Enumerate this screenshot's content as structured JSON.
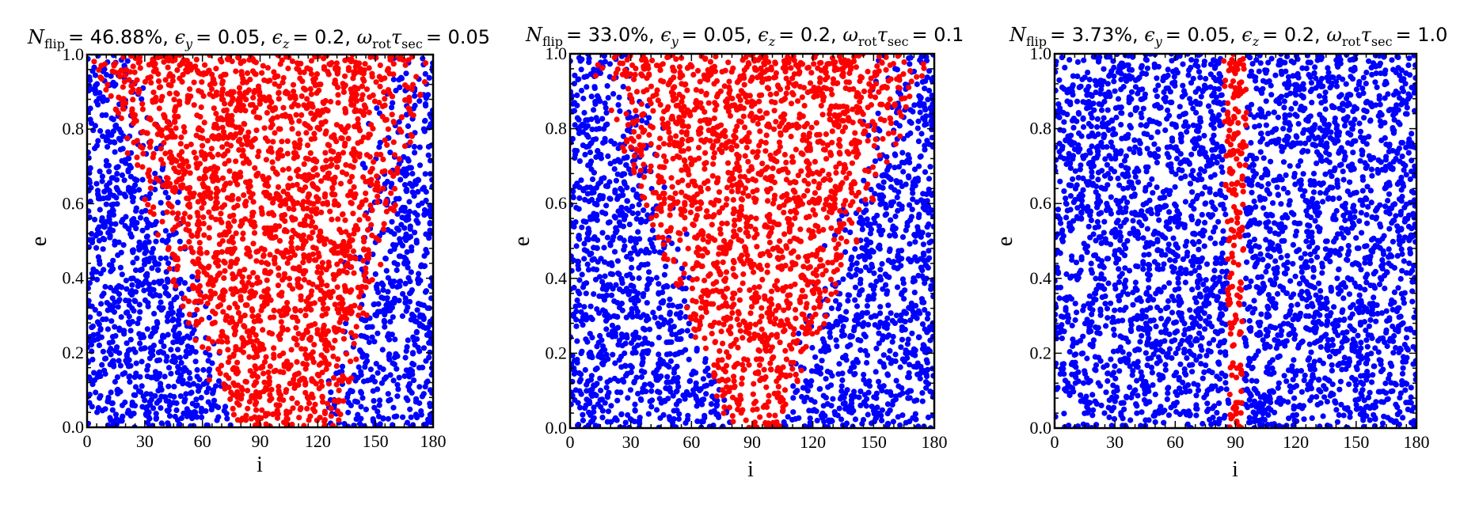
{
  "figure": {
    "panels": [
      {
        "title_parts": {
          "n_var": "N",
          "n_sub": "flip",
          "n_val": "= 46.88%,",
          "ey_sym": "ϵ",
          "ey_sub": "y",
          "ey_val": "= 0.05,",
          "ez_sym": "ϵ",
          "ez_sub": "z",
          "ez_val": "= 0.2,",
          "w_sym": "ω",
          "w_sub": "rot",
          "t_sym": "τ",
          "t_sub": "sec",
          "w_val": "= 0.05"
        }
      },
      {
        "title_parts": {
          "n_var": "N",
          "n_sub": "flip",
          "n_val": "= 33.0%,",
          "ey_sym": "ϵ",
          "ey_sub": "y",
          "ey_val": "= 0.05,",
          "ez_sym": "ϵ",
          "ez_sub": "z",
          "ez_val": "= 0.2,",
          "w_sym": "ω",
          "w_sub": "rot",
          "t_sym": "τ",
          "t_sub": "sec",
          "w_val": "= 0.1"
        }
      },
      {
        "title_parts": {
          "n_var": "N",
          "n_sub": "flip",
          "n_val": "= 3.73%,",
          "ey_sym": "ϵ",
          "ey_sub": "y",
          "ey_val": "= 0.05,",
          "ez_sym": "ϵ",
          "ez_sub": "z",
          "ez_val": "= 0.2,",
          "w_sym": "ω",
          "w_sub": "rot",
          "t_sym": "τ",
          "t_sub": "sec",
          "w_val": "= 1.0"
        }
      }
    ]
  },
  "chart_data": [
    {
      "type": "scatter",
      "title": "N_flip = 46.88%, ϵ_y = 0.05, ϵ_z = 0.2, ω_rot τ_sec = 0.05",
      "xlabel": "i",
      "ylabel": "e",
      "xlim": [
        0,
        180
      ],
      "ylim": [
        0.0,
        1.0
      ],
      "xticks": [
        0,
        30,
        60,
        90,
        120,
        150,
        180
      ],
      "yticks": [
        0.0,
        0.2,
        0.4,
        0.6,
        0.8,
        1.0
      ],
      "xtick_labels": [
        "0",
        "30",
        "60",
        "90",
        "120",
        "150",
        "180"
      ],
      "ytick_labels": [
        "0.0",
        "0.2",
        "0.4",
        "0.6",
        "0.8",
        "1.0"
      ],
      "grid": false,
      "colors": {
        "non_flip": "#0000ff",
        "flip": "#ff0000"
      },
      "series": [
        {
          "color": "#0000ff",
          "n_points": 3500,
          "x_range": [
            0,
            180
          ],
          "y_range": [
            0.0,
            1.0
          ]
        },
        {
          "color": "#ff0000",
          "flip_fraction": 0.4688,
          "region": {
            "e_top": 1.0,
            "i_low_at_top": 2,
            "i_high_at_top": 180,
            "e_bottom": 0.0,
            "i_low_at_bottom": 72,
            "i_high_at_bottom": 132
          }
        }
      ]
    },
    {
      "type": "scatter",
      "title": "N_flip = 33.0%, ϵ_y = 0.05, ϵ_z = 0.2, ω_rot τ_sec = 0.1",
      "xlabel": "i",
      "ylabel": "e",
      "xlim": [
        0,
        180
      ],
      "ylim": [
        0.0,
        1.0
      ],
      "xticks": [
        0,
        30,
        60,
        90,
        120,
        150,
        180
      ],
      "yticks": [
        0.0,
        0.2,
        0.4,
        0.6,
        0.8,
        1.0
      ],
      "xtick_labels": [
        "0",
        "30",
        "60",
        "90",
        "120",
        "150",
        "180"
      ],
      "ytick_labels": [
        "0.0",
        "0.2",
        "0.4",
        "0.6",
        "0.8",
        "1.0"
      ],
      "grid": false,
      "colors": {
        "non_flip": "#0000ff",
        "flip": "#ff0000"
      },
      "series": [
        {
          "color": "#0000ff",
          "n_points": 3500,
          "x_range": [
            0,
            180
          ],
          "y_range": [
            0.0,
            1.0
          ]
        },
        {
          "color": "#ff0000",
          "flip_fraction": 0.33,
          "region": {
            "e_top": 1.0,
            "i_low_at_top": 8,
            "i_high_at_top": 180,
            "e_bottom": 0.0,
            "i_low_at_bottom": 78,
            "i_high_at_bottom": 105
          }
        }
      ]
    },
    {
      "type": "scatter",
      "title": "N_flip = 3.73%, ϵ_y = 0.05, ϵ_z = 0.2, ω_rot τ_sec = 1.0",
      "xlabel": "i",
      "ylabel": "e",
      "xlim": [
        0,
        180
      ],
      "ylim": [
        0.0,
        1.0
      ],
      "xticks": [
        0,
        30,
        60,
        90,
        120,
        150,
        180
      ],
      "yticks": [
        0.0,
        0.2,
        0.4,
        0.6,
        0.8,
        1.0
      ],
      "xtick_labels": [
        "0",
        "30",
        "60",
        "90",
        "120",
        "150",
        "180"
      ],
      "ytick_labels": [
        "0.0",
        "0.2",
        "0.4",
        "0.6",
        "0.8",
        "1.0"
      ],
      "grid": false,
      "colors": {
        "non_flip": "#0000ff",
        "flip": "#ff0000"
      },
      "series": [
        {
          "color": "#0000ff",
          "n_points": 3500,
          "x_range": [
            0,
            180
          ],
          "y_range": [
            0.0,
            1.0
          ]
        },
        {
          "color": "#ff0000",
          "flip_fraction": 0.0373,
          "region": {
            "e_top": 1.0,
            "i_low_at_top": 84,
            "i_high_at_top": 96,
            "e_bottom": 0.0,
            "i_low_at_bottom": 87,
            "i_high_at_bottom": 93
          }
        }
      ]
    }
  ]
}
